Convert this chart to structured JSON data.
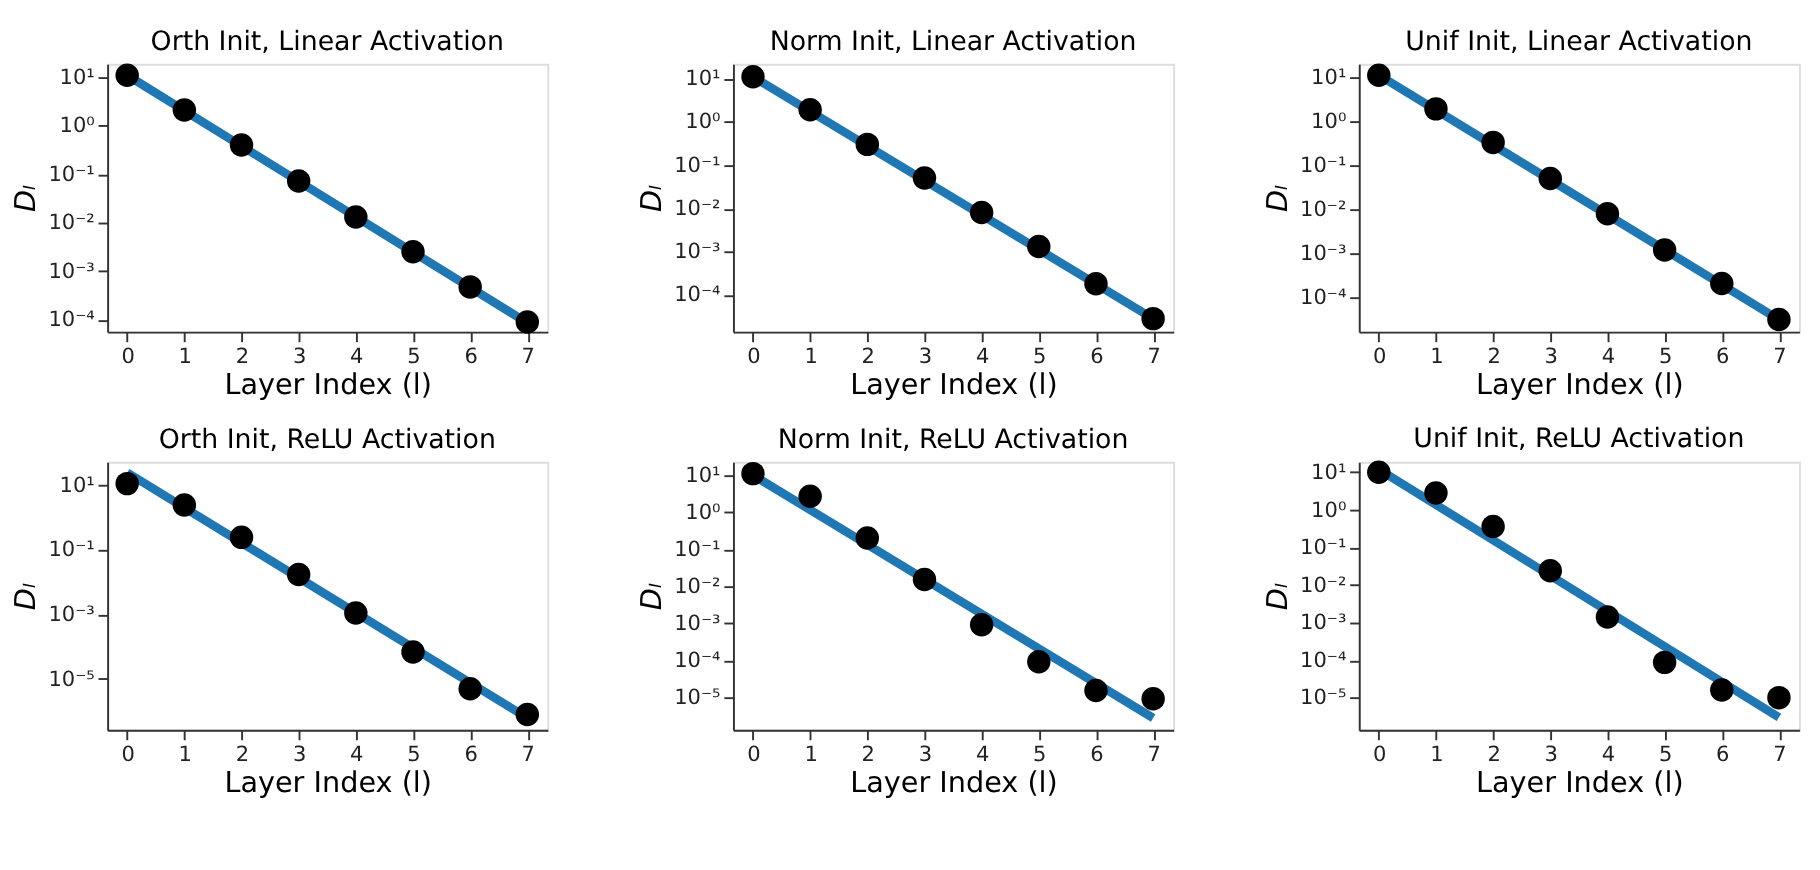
{
  "chart_data": [
    {
      "type": "scatter",
      "title": "Orth Init, Linear Activation",
      "xlabel": "Layer Index (l)",
      "ylabel": "Dₗ",
      "log": "y",
      "grid": false,
      "xlim": [
        -0.35,
        7.35
      ],
      "xticks": [
        0,
        1,
        2,
        3,
        4,
        5,
        6,
        7
      ],
      "ylim": [
        5.6e-05,
        19
      ],
      "yticks": [
        {
          "value": 10,
          "label": "10¹"
        },
        {
          "value": 1,
          "label": "10⁰"
        },
        {
          "value": 0.1,
          "label": "10⁻¹"
        },
        {
          "value": 0.01,
          "label": "10⁻²"
        },
        {
          "value": 0.001,
          "label": "10⁻³"
        },
        {
          "value": 0.0001,
          "label": "10⁻⁴"
        }
      ],
      "series": [
        {
          "type": "line",
          "color": "#1f77b4",
          "x": [
            0,
            7
          ],
          "values": [
            11,
            8.5e-05
          ]
        },
        {
          "type": "scatter",
          "marker": "circle",
          "color": "#000000",
          "x": [
            0,
            1,
            2,
            3,
            4,
            5,
            6,
            7
          ],
          "values": [
            11,
            2.1,
            0.4,
            0.072,
            0.013,
            0.0025,
            0.00047,
            8.9e-05
          ]
        }
      ]
    },
    {
      "type": "scatter",
      "title": "Norm Init, Linear Activation",
      "xlabel": "Layer Index (l)",
      "ylabel": "Dₗ",
      "log": "y",
      "grid": false,
      "xlim": [
        -0.35,
        7.35
      ],
      "xticks": [
        0,
        1,
        2,
        3,
        4,
        5,
        6,
        7
      ],
      "ylim": [
        1.4e-05,
        22
      ],
      "yticks": [
        {
          "value": 10,
          "label": "10¹"
        },
        {
          "value": 1,
          "label": "10⁰"
        },
        {
          "value": 0.1,
          "label": "10⁻¹"
        },
        {
          "value": 0.01,
          "label": "10⁻²"
        },
        {
          "value": 0.001,
          "label": "10⁻³"
        },
        {
          "value": 0.0001,
          "label": "10⁻⁴"
        }
      ],
      "series": [
        {
          "type": "line",
          "color": "#1f77b4",
          "x": [
            0,
            7
          ],
          "values": [
            11,
            2.8e-05
          ]
        },
        {
          "type": "scatter",
          "marker": "circle",
          "color": "#000000",
          "x": [
            0,
            1,
            2,
            3,
            4,
            5,
            6,
            7
          ],
          "values": [
            11,
            1.9,
            0.3,
            0.05,
            0.008,
            0.0013,
            0.00018,
            2.8e-05
          ]
        }
      ]
    },
    {
      "type": "scatter",
      "title": "Unif Init, Linear Activation",
      "xlabel": "Layer Index (l)",
      "ylabel": "Dₗ",
      "log": "y",
      "grid": false,
      "xlim": [
        -0.35,
        7.35
      ],
      "xticks": [
        0,
        1,
        2,
        3,
        4,
        5,
        6,
        7
      ],
      "ylim": [
        1.7e-05,
        20
      ],
      "yticks": [
        {
          "value": 10,
          "label": "10¹"
        },
        {
          "value": 1,
          "label": "10⁰"
        },
        {
          "value": 0.1,
          "label": "10⁻¹"
        },
        {
          "value": 0.01,
          "label": "10⁻²"
        },
        {
          "value": 0.001,
          "label": "10⁻³"
        },
        {
          "value": 0.0001,
          "label": "10⁻⁴"
        }
      ],
      "series": [
        {
          "type": "line",
          "color": "#1f77b4",
          "x": [
            0,
            7
          ],
          "values": [
            11,
            3.2e-05
          ]
        },
        {
          "type": "scatter",
          "marker": "circle",
          "color": "#000000",
          "x": [
            0,
            1,
            2,
            3,
            4,
            5,
            6,
            7
          ],
          "values": [
            11,
            1.9,
            0.33,
            0.05,
            0.008,
            0.0012,
            0.00021,
            3.2e-05
          ]
        }
      ]
    },
    {
      "type": "scatter",
      "title": "Orth Init, ReLU Activation",
      "xlabel": "Layer Index (l)",
      "ylabel": "Dₗ",
      "log": "y",
      "grid": false,
      "xlim": [
        -0.35,
        7.35
      ],
      "xticks": [
        0,
        1,
        2,
        3,
        4,
        5,
        6,
        7
      ],
      "ylim": [
        2.7e-07,
        52
      ],
      "yticks": [
        {
          "value": 10,
          "label": "10¹"
        },
        {
          "value": 0.1,
          "label": "10⁻¹"
        },
        {
          "value": 0.001,
          "label": "10⁻³"
        },
        {
          "value": 1e-05,
          "label": "10⁻⁵"
        }
      ],
      "series": [
        {
          "type": "line",
          "color": "#1f77b4",
          "x": [
            0,
            7
          ],
          "values": [
            24,
            6.3e-07
          ]
        },
        {
          "type": "scatter",
          "marker": "circle",
          "color": "#000000",
          "x": [
            0,
            1,
            2,
            3,
            4,
            5,
            6,
            7
          ],
          "values": [
            11,
            2.4,
            0.24,
            0.017,
            0.0011,
            6.8e-05,
            5e-06,
            8e-07
          ]
        }
      ]
    },
    {
      "type": "scatter",
      "title": "Norm Init, ReLU Activation",
      "xlabel": "Layer Index (l)",
      "ylabel": "Dₗ",
      "log": "y",
      "grid": false,
      "xlim": [
        -0.35,
        7.35
      ],
      "xticks": [
        0,
        1,
        2,
        3,
        4,
        5,
        6,
        7
      ],
      "ylim": [
        1.3e-06,
        23
      ],
      "yticks": [
        {
          "value": 10,
          "label": "10¹"
        },
        {
          "value": 1,
          "label": "10⁰"
        },
        {
          "value": 0.1,
          "label": "10⁻¹"
        },
        {
          "value": 0.01,
          "label": "10⁻²"
        },
        {
          "value": 0.001,
          "label": "10⁻³"
        },
        {
          "value": 0.0001,
          "label": "10⁻⁴"
        },
        {
          "value": 1e-05,
          "label": "10⁻⁵"
        }
      ],
      "series": [
        {
          "type": "line",
          "color": "#1f77b4",
          "x": [
            0,
            7
          ],
          "values": [
            10,
            2.7e-06
          ]
        },
        {
          "type": "scatter",
          "marker": "circle",
          "color": "#000000",
          "x": [
            0,
            1,
            2,
            3,
            4,
            5,
            6,
            7
          ],
          "values": [
            11,
            2.7,
            0.2,
            0.015,
            0.0009,
            9e-05,
            1.5e-05,
            9e-06
          ]
        }
      ]
    },
    {
      "type": "scatter",
      "title": "Unif Init, ReLU Activation",
      "xlabel": "Layer Index (l)",
      "ylabel": "Dₗ",
      "log": "y",
      "grid": false,
      "xlim": [
        -0.35,
        7.35
      ],
      "xticks": [
        0,
        1,
        2,
        3,
        4,
        5,
        6,
        7
      ],
      "ylim": [
        1.4e-06,
        19
      ],
      "yticks": [
        {
          "value": 10,
          "label": "10¹"
        },
        {
          "value": 1,
          "label": "10⁰"
        },
        {
          "value": 0.1,
          "label": "10⁻¹"
        },
        {
          "value": 0.01,
          "label": "10⁻²"
        },
        {
          "value": 0.001,
          "label": "10⁻³"
        },
        {
          "value": 0.0001,
          "label": "10⁻⁴"
        },
        {
          "value": 1e-05,
          "label": "10⁻⁵"
        }
      ],
      "series": [
        {
          "type": "line",
          "color": "#1f77b4",
          "x": [
            0,
            7
          ],
          "values": [
            12,
            3e-06
          ]
        },
        {
          "type": "scatter",
          "marker": "circle",
          "color": "#000000",
          "x": [
            0,
            1,
            2,
            3,
            4,
            5,
            6,
            7
          ],
          "values": [
            10,
            2.8,
            0.36,
            0.024,
            0.0014,
            8.7e-05,
            1.6e-05,
            1e-05
          ]
        }
      ]
    }
  ]
}
